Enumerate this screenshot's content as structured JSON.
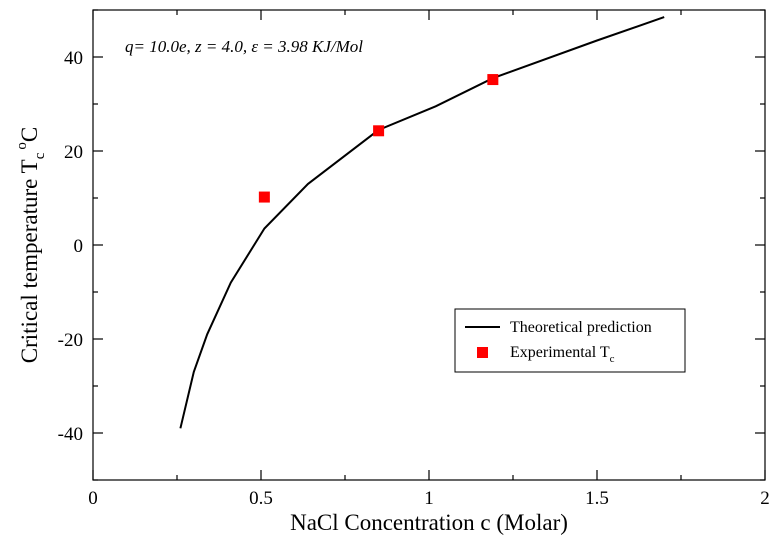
{
  "chart_data": {
    "type": "line",
    "xlabel": "NaCl Concentration c (Molar)",
    "ylabel": {
      "main": "Critical temperature T",
      "sub": "c",
      "sup": "o",
      "unit": "C"
    },
    "xlim": [
      0,
      2
    ],
    "ylim": [
      -50,
      50
    ],
    "xticks": [
      0,
      0.5,
      1,
      1.5,
      2
    ],
    "xtick_labels": [
      "0",
      "0.5",
      "1",
      "1.5",
      "2"
    ],
    "yticks": [
      -40,
      -20,
      0,
      20,
      40
    ],
    "ytick_labels": [
      "-40",
      "-20",
      "0",
      "20",
      "40"
    ],
    "grid": false,
    "legend_position": "lower-right",
    "annotation": "q= 10.0e,  z = 4.0, ε = 3.98 KJ/Mol",
    "series": [
      {
        "name": "Theoretical prediction",
        "style": "line",
        "color": "#000000",
        "x": [
          0.26,
          0.3,
          0.34,
          0.41,
          0.51,
          0.64,
          0.85,
          1.02,
          1.19,
          1.5,
          1.7
        ],
        "y": [
          -39,
          -27,
          -19,
          -8,
          3.5,
          13,
          24.5,
          29.5,
          35.5,
          43.5,
          48.5
        ]
      },
      {
        "name": "Experimental T",
        "name_sub": "c",
        "style": "square",
        "color": "#ff0000",
        "x": [
          0.51,
          0.85,
          1.19
        ],
        "y": [
          10.2,
          24.3,
          35.2
        ]
      }
    ]
  }
}
